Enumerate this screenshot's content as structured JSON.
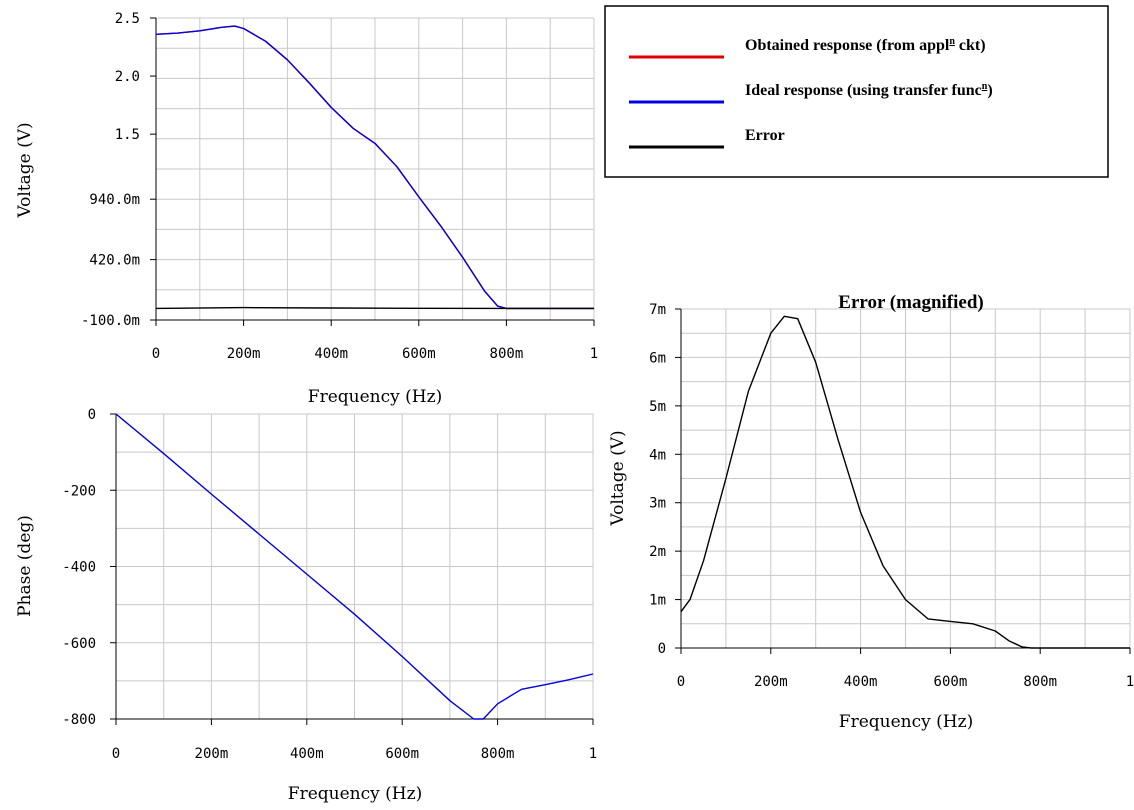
{
  "chart_data": [
    {
      "type": "line",
      "title": "",
      "xlabel": "Frequency (Hz)",
      "ylabel": "Voltage (V)",
      "x_ticks": [
        "0",
        "200m",
        "400m",
        "600m",
        "800m",
        "1"
      ],
      "y_ticks": [
        "-100.0m",
        "420.0m",
        "940.0m",
        "1.5",
        "2.0",
        "2.5"
      ],
      "xlim": [
        0,
        1
      ],
      "ylim": [
        -0.1,
        2.5
      ],
      "grid": true,
      "series": [
        {
          "name": "Obtained response (from appl^n ckt)",
          "color": "#e00000",
          "x": [
            0,
            0.05,
            0.1,
            0.15,
            0.18,
            0.2,
            0.25,
            0.3,
            0.35,
            0.4,
            0.45,
            0.5,
            0.55,
            0.6,
            0.65,
            0.7,
            0.75,
            0.78,
            0.8,
            0.85,
            0.9,
            0.95,
            1.0
          ],
          "y": [
            2.36,
            2.37,
            2.39,
            2.42,
            2.43,
            2.41,
            2.3,
            2.14,
            1.94,
            1.73,
            1.55,
            1.42,
            1.22,
            0.96,
            0.71,
            0.44,
            0.15,
            0.02,
            0.0,
            0.0,
            0.0,
            0.0,
            0.0
          ]
        },
        {
          "name": "Ideal response (using transfer func^n)",
          "color": "#0000e0",
          "x": [
            0,
            0.05,
            0.1,
            0.15,
            0.18,
            0.2,
            0.25,
            0.3,
            0.35,
            0.4,
            0.45,
            0.5,
            0.55,
            0.6,
            0.65,
            0.7,
            0.75,
            0.78,
            0.8,
            0.85,
            0.9,
            0.95,
            1.0
          ],
          "y": [
            2.36,
            2.37,
            2.39,
            2.42,
            2.43,
            2.41,
            2.3,
            2.14,
            1.94,
            1.73,
            1.55,
            1.42,
            1.22,
            0.96,
            0.71,
            0.44,
            0.15,
            0.02,
            0.0,
            0.0,
            0.0,
            0.0,
            0.0
          ]
        },
        {
          "name": "Error",
          "color": "#000000",
          "x": [
            0,
            0.2,
            0.4,
            0.6,
            0.8,
            1.0
          ],
          "y": [
            0.0,
            0.007,
            0.003,
            0.0005,
            0.0,
            0.0
          ]
        }
      ]
    },
    {
      "type": "line",
      "title": "",
      "xlabel": "Frequency (Hz)",
      "ylabel": "Phase (deg)",
      "x_ticks": [
        "0",
        "200m",
        "400m",
        "600m",
        "800m",
        "1"
      ],
      "y_ticks": [
        "-800",
        "-600",
        "-400",
        "-200",
        "0"
      ],
      "xlim": [
        0,
        1
      ],
      "ylim": [
        -800,
        0
      ],
      "grid": true,
      "series": [
        {
          "color": "#0000e0",
          "x": [
            0,
            0.1,
            0.2,
            0.3,
            0.4,
            0.5,
            0.6,
            0.7,
            0.75,
            0.77,
            0.8,
            0.85,
            0.9,
            0.95,
            1.0
          ],
          "y": [
            0,
            -104,
            -210,
            -315,
            -420,
            -525,
            -636,
            -752,
            -800,
            -800,
            -760,
            -722,
            -710,
            -697,
            -682
          ]
        }
      ]
    },
    {
      "type": "line",
      "title": "Error (magnified)",
      "xlabel": "Frequency (Hz)",
      "ylabel": "Voltage (V)",
      "x_ticks": [
        "0",
        "200m",
        "400m",
        "600m",
        "800m",
        "1"
      ],
      "y_ticks": [
        "0",
        "1m",
        "2m",
        "3m",
        "4m",
        "5m",
        "6m",
        "7m"
      ],
      "xlim": [
        0,
        1
      ],
      "ylim": [
        0,
        0.007
      ],
      "grid": true,
      "series": [
        {
          "color": "#000000",
          "x": [
            0,
            0.02,
            0.05,
            0.1,
            0.15,
            0.2,
            0.23,
            0.26,
            0.3,
            0.35,
            0.4,
            0.45,
            0.5,
            0.55,
            0.6,
            0.65,
            0.7,
            0.73,
            0.76,
            0.78,
            0.8,
            0.85,
            0.9,
            0.95,
            1.0
          ],
          "y": [
            0.00075,
            0.001,
            0.0018,
            0.0035,
            0.0053,
            0.0065,
            0.00685,
            0.0068,
            0.0059,
            0.0043,
            0.0028,
            0.0017,
            0.001,
            0.0006,
            0.00055,
            0.0005,
            0.00035,
            0.00015,
            2e-05,
            0.0,
            0.0,
            0.0,
            0.0,
            0.0,
            0.0
          ]
        }
      ]
    }
  ],
  "legend": {
    "items": [
      {
        "pre": "Obtained response (from appl",
        "sup": "n",
        "post": " ckt)",
        "color": "#e00000"
      },
      {
        "pre": "Ideal response (using transfer func",
        "sup": "n",
        "post": ")",
        "color": "#0000e0"
      },
      {
        "pre": "Error",
        "sup": "",
        "post": "",
        "color": "#000000"
      }
    ]
  }
}
